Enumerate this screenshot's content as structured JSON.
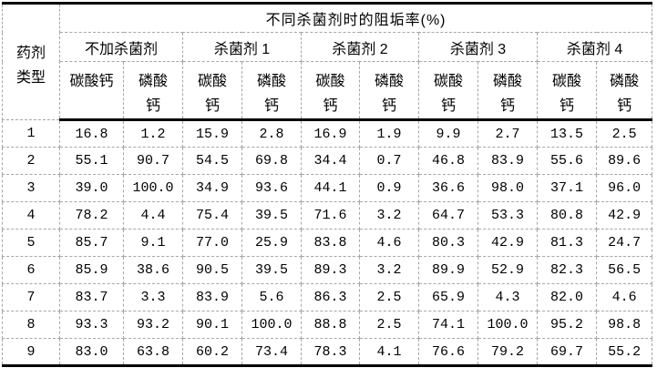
{
  "table": {
    "title": "不同杀菌剂时的阻垢率(%)",
    "corner_label": "药剂\n类型",
    "groups": [
      {
        "label": "不加杀菌剂"
      },
      {
        "label": "杀菌剂 1"
      },
      {
        "label": "杀菌剂 2"
      },
      {
        "label": "杀菌剂 3"
      },
      {
        "label": "杀菌剂 4"
      }
    ],
    "subheaders": [
      "碳酸钙",
      "磷酸\n钙",
      "碳酸\n钙",
      "磷酸\n钙",
      "碳酸\n钙",
      "磷酸\n钙",
      "碳酸\n钙",
      "磷酸\n钙",
      "碳酸\n钙",
      "磷酸\n钙"
    ],
    "rows": [
      {
        "label": "1",
        "values": [
          "16.8",
          "1.2",
          "15.9",
          "2.8",
          "16.9",
          "1.9",
          "9.9",
          "2.7",
          "13.5",
          "2.5"
        ]
      },
      {
        "label": "2",
        "values": [
          "55.1",
          "90.7",
          "54.5",
          "69.8",
          "34.4",
          "0.7",
          "46.8",
          "83.9",
          "55.6",
          "89.6"
        ]
      },
      {
        "label": "3",
        "values": [
          "39.0",
          "100.0",
          "34.9",
          "93.6",
          "44.1",
          "0.9",
          "36.6",
          "98.0",
          "37.1",
          "96.0"
        ]
      },
      {
        "label": "4",
        "values": [
          "78.2",
          "4.4",
          "75.4",
          "39.5",
          "71.6",
          "3.2",
          "64.7",
          "53.3",
          "80.8",
          "42.9"
        ]
      },
      {
        "label": "5",
        "values": [
          "85.7",
          "9.1",
          "77.0",
          "25.9",
          "83.8",
          "4.6",
          "80.3",
          "42.9",
          "81.3",
          "24.7"
        ]
      },
      {
        "label": "6",
        "values": [
          "85.9",
          "38.6",
          "90.5",
          "39.5",
          "89.3",
          "3.2",
          "89.9",
          "52.9",
          "82.3",
          "56.5"
        ]
      },
      {
        "label": "7",
        "values": [
          "83.7",
          "3.3",
          "83.9",
          "5.6",
          "86.3",
          "2.5",
          "65.9",
          "4.3",
          "82.0",
          "4.6"
        ]
      },
      {
        "label": "8",
        "values": [
          "93.3",
          "93.2",
          "90.1",
          "100.0",
          "88.8",
          "2.5",
          "74.1",
          "100.0",
          "95.2",
          "98.8"
        ]
      },
      {
        "label": "9",
        "values": [
          "83.0",
          "63.8",
          "60.2",
          "73.4",
          "78.3",
          "4.1",
          "76.6",
          "79.2",
          "69.7",
          "55.2"
        ]
      }
    ],
    "colors": {
      "text": "#000000",
      "background": "#ffffff",
      "solid_border": "#000000",
      "dashed_border": "#a6a6a6"
    }
  }
}
